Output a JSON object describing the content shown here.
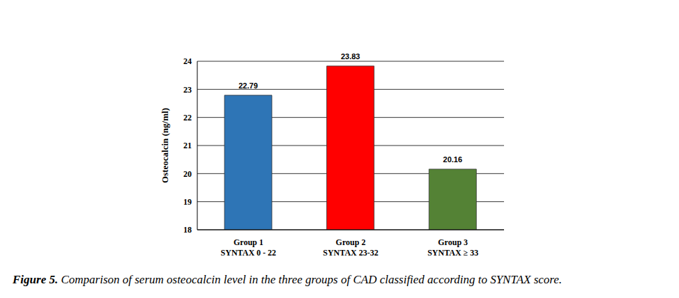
{
  "chart_data": {
    "type": "bar",
    "title": "Figure 5. Comparison of serum osteocalcin level in the three groups of CAD classified according to SYNTAX score.",
    "y_label": "Osteocalcin (ng/ml)",
    "categories": [
      "Group 1\nSYNTAX 0 - 22",
      "Group 2\nSYNTAX 23-32",
      "Group 3\nSYNTAX ≥ 33"
    ],
    "values": [
      22.79,
      23.83,
      20.16
    ],
    "colors": [
      "#2e75b6",
      "#ff0000",
      "#548235"
    ],
    "ylim": [
      18,
      24
    ],
    "yticks": [
      18,
      19,
      20,
      21,
      22,
      23,
      24
    ],
    "grid": true,
    "data_labels": true
  }
}
